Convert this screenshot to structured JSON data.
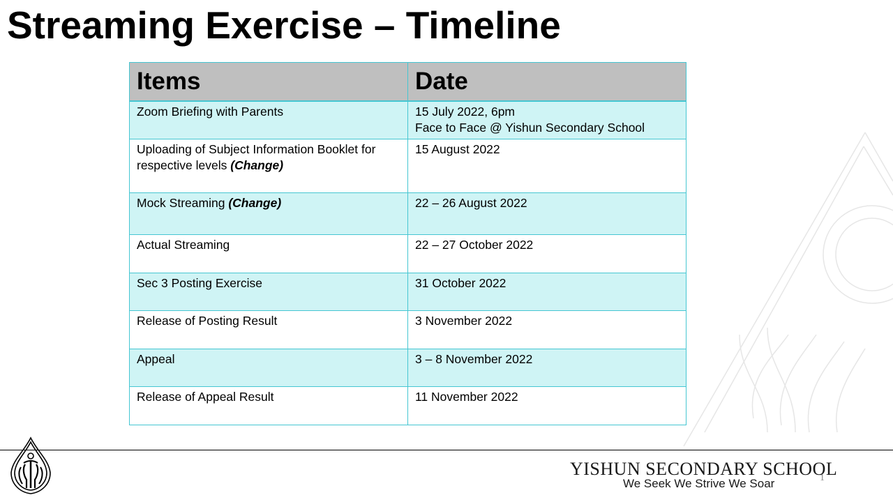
{
  "slide": {
    "title": "Streaming Exercise – Timeline"
  },
  "table": {
    "headers": [
      "Items",
      "Date"
    ],
    "rows": [
      {
        "item": "Zoom Briefing with Parents",
        "item_note": "",
        "date": "15 July 2022, 6pm",
        "date_line2": "Face to Face @ Yishun Secondary School"
      },
      {
        "item": "Uploading of Subject Information Booklet for respective levels",
        "item_note": "(Change)",
        "date": "15 August 2022",
        "date_line2": ""
      },
      {
        "item": "Mock Streaming",
        "item_note": "(Change)",
        "date": "22 – 26 August 2022",
        "date_line2": ""
      },
      {
        "item": "Actual Streaming",
        "item_note": "",
        "date": "22 – 27 October 2022",
        "date_line2": ""
      },
      {
        "item": "Sec 3 Posting Exercise",
        "item_note": "",
        "date": "31 October 2022",
        "date_line2": ""
      },
      {
        "item": "Release of Posting Result",
        "item_note": "",
        "date": "3 November 2022",
        "date_line2": ""
      },
      {
        "item": "Appeal",
        "item_note": "",
        "date": "3 – 8 November 2022",
        "date_line2": ""
      },
      {
        "item": "Release of Appeal Result",
        "item_note": "",
        "date": "11 November 2022",
        "date_line2": ""
      }
    ]
  },
  "footer": {
    "school_name": "YISHUN SECONDARY SCHOOL",
    "motto": "We Seek We Strive We Soar",
    "page_number": "1"
  },
  "colors": {
    "header_bg": "#bfbfbf",
    "row_shade": "#cff4f5",
    "border": "#45c6d2"
  },
  "icons": {
    "logo": "school-crest-icon"
  }
}
